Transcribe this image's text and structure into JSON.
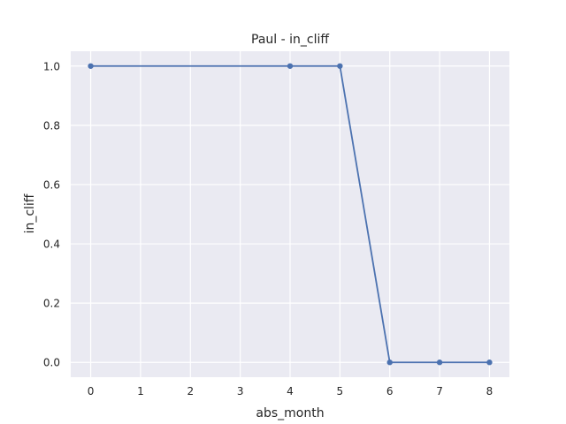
{
  "chart_data": {
    "type": "line",
    "title": "Paul - in_cliff",
    "xlabel": "abs_month",
    "ylabel": "in_cliff",
    "x": [
      0,
      4,
      5,
      6,
      7,
      8
    ],
    "series": [
      {
        "values": [
          1.0,
          1.0,
          1.0,
          0.0,
          0.0,
          0.0
        ]
      }
    ],
    "xticks": [
      "0",
      "1",
      "2",
      "3",
      "4",
      "5",
      "6",
      "7",
      "8"
    ],
    "yticks": [
      "0.0",
      "0.2",
      "0.4",
      "0.6",
      "0.8",
      "1.0"
    ],
    "xlim": [
      -0.4,
      8.4
    ],
    "ylim": [
      -0.05,
      1.05
    ],
    "grid": true,
    "colors": {
      "background": "#eaeaf2",
      "grid": "#ffffff",
      "line": "#4c72b0",
      "text": "#262626"
    }
  }
}
